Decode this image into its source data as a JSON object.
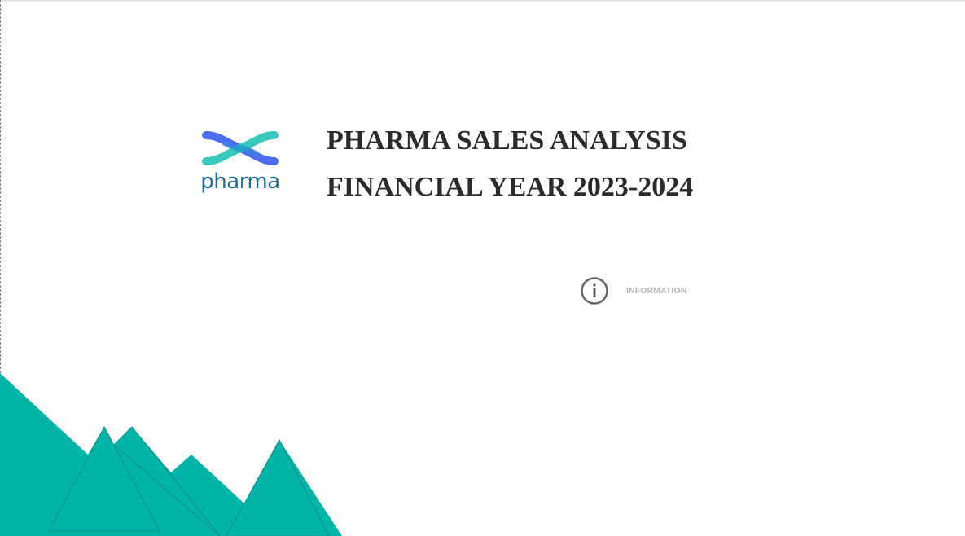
{
  "brand": {
    "logo_text": "pharma",
    "colors": {
      "blue": "#4d6cf0",
      "teal": "#16bfb0",
      "text": "#1e6b93"
    }
  },
  "header": {
    "title_line1": "PHARMA SALES ANALYSIS",
    "title_line2": "FINANCIAL YEAR 2023-2024"
  },
  "info_button": {
    "label": "INFORMATION",
    "icon": "info-icon"
  },
  "decoration": {
    "icon": "mountain-shapes",
    "color": "#00b4a8",
    "stroke": "#16807a"
  }
}
